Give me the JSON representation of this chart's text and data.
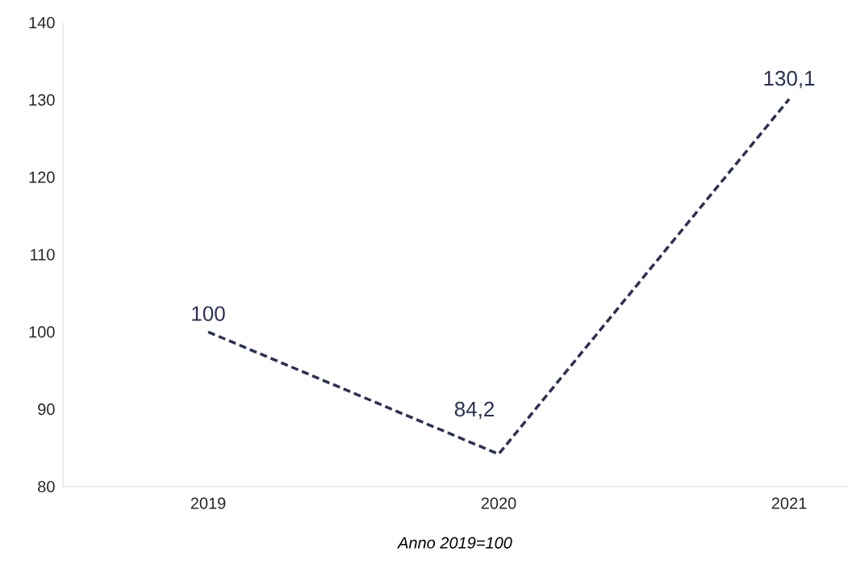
{
  "chart_data": {
    "type": "line",
    "xlabel": "Anno 2019=100",
    "categories": [
      "2019",
      "2020",
      "2021"
    ],
    "series": [
      {
        "color": "#2b3156",
        "values": [
          100,
          84.2,
          130.1
        ],
        "value_labels": [
          "100",
          "84,2",
          "130,1"
        ]
      }
    ],
    "ylim": [
      80,
      140
    ],
    "yticks": [
      80,
      90,
      100,
      110,
      120,
      130,
      140
    ],
    "grid": false,
    "marker": "none",
    "line_style": "dashed"
  }
}
